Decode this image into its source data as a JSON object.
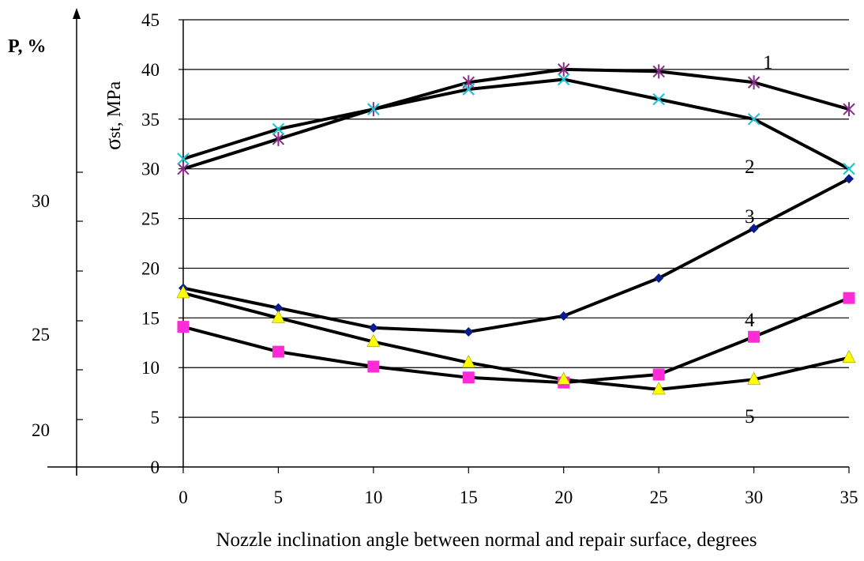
{
  "chart_data": {
    "type": "line",
    "title": "",
    "xlabel": "Nozzle inclination angle between normal and repair surface, degrees",
    "ylabel_symbol": "σ",
    "ylabel_subscript": "st",
    "ylabel_unit": ", MPa",
    "secondary_ylabel": "P, %",
    "x": [
      0,
      5,
      10,
      15,
      20,
      25,
      30,
      35
    ],
    "x_ticks": [
      "0",
      "5",
      "10",
      "15",
      "20",
      "25",
      "30",
      "35"
    ],
    "y_ticks": [
      "0",
      "5",
      "10",
      "15",
      "20",
      "25",
      "30",
      "35",
      "40",
      "45"
    ],
    "secondary_y_ticks": [
      "20",
      "25",
      "30"
    ],
    "ylim": [
      0,
      45
    ],
    "xlim": [
      0,
      35
    ],
    "grid": "horizontal",
    "legend": "inline curve numbers",
    "series": [
      {
        "name": "1",
        "marker": "asterisk",
        "color": "#8B2C8B",
        "values": [
          30,
          33,
          36,
          38.7,
          40,
          39.8,
          38.7,
          36
        ]
      },
      {
        "name": "2",
        "marker": "x",
        "color": "#22C4D4",
        "values": [
          31,
          34,
          36,
          38,
          39,
          37,
          35,
          30
        ]
      },
      {
        "name": "3",
        "marker": "diamond",
        "color": "#0A1C8C",
        "values": [
          18,
          16,
          14,
          13.6,
          15.2,
          19,
          24,
          29
        ]
      },
      {
        "name": "4",
        "marker": "square",
        "color": "#FF2BD6",
        "values": [
          14.1,
          11.6,
          10.1,
          9,
          8.5,
          9.3,
          13.1,
          17
        ]
      },
      {
        "name": "5",
        "marker": "triangle",
        "color": "#FFFF00",
        "values": [
          17.5,
          15,
          12.6,
          10.5,
          8.8,
          7.8,
          8.8,
          11
        ]
      }
    ]
  }
}
